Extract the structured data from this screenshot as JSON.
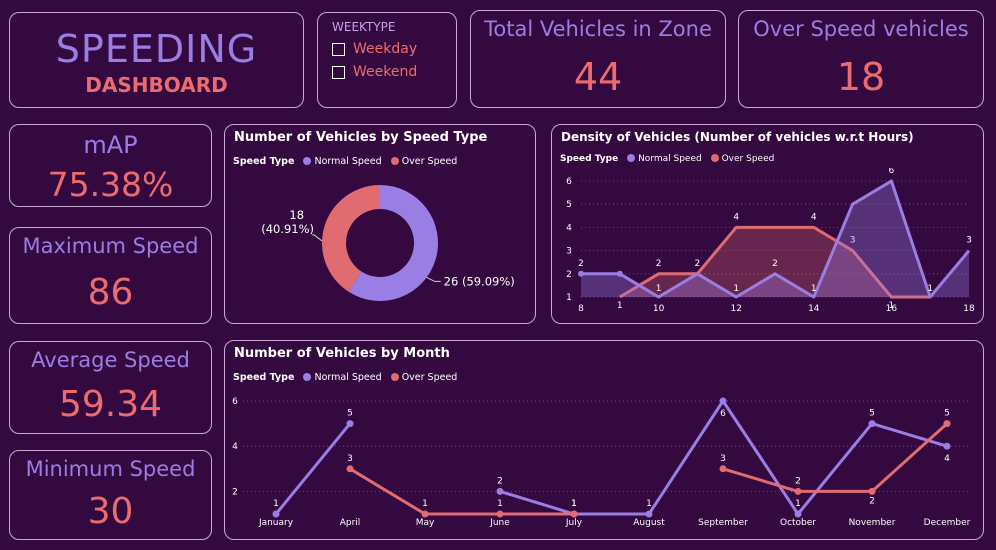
{
  "header": {
    "title": "SPEEDING",
    "subtitle": "DASHBOARD"
  },
  "filter": {
    "title": "WEEKTYPE",
    "options": [
      "Weekday",
      "Weekend"
    ]
  },
  "kpis": {
    "total_label": "Total Vehicles in Zone",
    "total_value": "44",
    "over_label": "Over Speed vehicles",
    "over_value": "18",
    "map_label": "mAP",
    "map_value": "75.38%",
    "max_label": "Maximum Speed",
    "max_value": "86",
    "avg_label": "Average Speed",
    "avg_value": "59.34",
    "min_label": "Minimum Speed",
    "min_value": "30"
  },
  "legend": {
    "title": "Speed Type",
    "normal": "Normal Speed",
    "over": "Over Speed"
  },
  "colors": {
    "normal": "#9a7ee3",
    "over": "#e06b70",
    "background": "#33093f"
  },
  "chart_data": [
    {
      "type": "pie",
      "title": "Number of Vehicles by Speed Type",
      "categories": [
        "Normal Speed",
        "Over Speed"
      ],
      "values": [
        26,
        18
      ],
      "labels": [
        "26 (59.09%)",
        "18 (40.91%)"
      ]
    },
    {
      "type": "area",
      "title": "Density of Vehicles (Number of vehicles w.r.t Hours)",
      "x": [
        8,
        9,
        10,
        11,
        12,
        13,
        14,
        15,
        16,
        17,
        18
      ],
      "x_ticks": [
        "8",
        "10",
        "12",
        "14",
        "16",
        "18"
      ],
      "y_ticks": [
        "1",
        "2",
        "3",
        "4",
        "5",
        "6"
      ],
      "ylim": [
        1,
        6
      ],
      "series": [
        {
          "name": "Normal Speed",
          "values": [
            2,
            2,
            1,
            2,
            1,
            2,
            1,
            5,
            6,
            1,
            3
          ],
          "labels": [
            "2",
            "",
            "1",
            "2",
            "1",
            "2",
            "1",
            "",
            "6",
            "1",
            "3"
          ]
        },
        {
          "name": "Over Speed",
          "values": [
            null,
            1,
            2,
            2,
            4,
            4,
            4,
            3,
            1,
            1,
            null
          ],
          "labels": [
            "",
            "1",
            "2",
            "",
            "4",
            "",
            "4",
            "3",
            "1",
            "",
            ""
          ]
        }
      ]
    },
    {
      "type": "line",
      "title": "Number of Vehicles by Month",
      "categories": [
        "January",
        "April",
        "May",
        "June",
        "July",
        "August",
        "September",
        "October",
        "November",
        "December"
      ],
      "y_ticks": [
        "2",
        "4",
        "6"
      ],
      "ylim": [
        1,
        6
      ],
      "series": [
        {
          "name": "Normal Speed",
          "values": [
            1,
            5,
            null,
            2,
            1,
            1,
            6,
            1,
            5,
            4
          ]
        },
        {
          "name": "Over Speed",
          "values": [
            null,
            3,
            1,
            1,
            1,
            null,
            3,
            2,
            2,
            5
          ]
        }
      ]
    }
  ]
}
